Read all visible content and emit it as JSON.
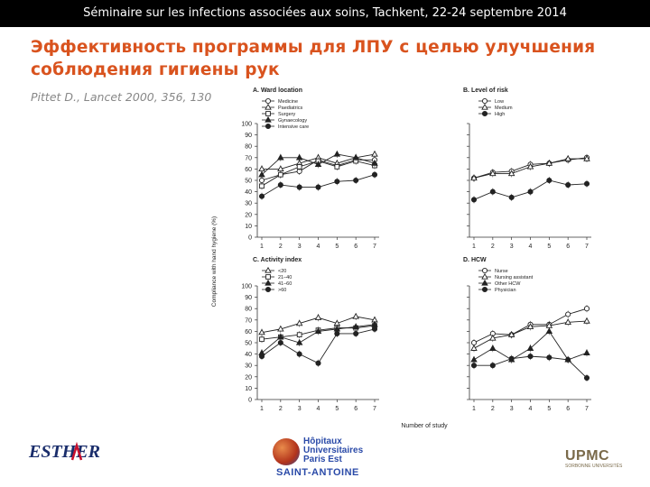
{
  "header": {
    "bar_text": "Séminaire sur les infections associées aux soins, Tachkent, 22-24 septembre 2014"
  },
  "slide": {
    "title_line1": "Эффективность программы для ЛПУ с целью улучшения",
    "title_line2": "соблюдения гигиены рук",
    "citation": "Pittet D., Lancet 2000, 356, 130"
  },
  "logos": {
    "esther": "ESTHER",
    "hopitaux": "Hôpitaux Universitaires Paris Est",
    "saint_antoine": "SAINT-ANTOINE",
    "upmc": "UPMC",
    "upmc_sub": "SORBONNE UNIVERSITÉS"
  },
  "colors": {
    "title": "#d9531e",
    "bar": "#000000",
    "series": "#222222"
  },
  "chart_data": {
    "type": "line",
    "ylabel": "Compliance with hand hygiene (%)",
    "xlabel": "Number of study",
    "x": [
      1,
      2,
      3,
      4,
      5,
      6,
      7
    ],
    "ylim": [
      0,
      100
    ],
    "yticks": [
      0,
      10,
      20,
      30,
      40,
      50,
      60,
      70,
      80,
      90,
      100
    ],
    "panels": [
      {
        "title": "A. Ward location",
        "y_tick_labels_shown": true,
        "series": [
          {
            "name": "Medicine",
            "marker": "circle-open",
            "values": [
              50,
              55,
              58,
              68,
              63,
              68,
              68
            ]
          },
          {
            "name": "Paediatrics",
            "marker": "triangle-open",
            "values": [
              60,
              60,
              65,
              70,
              65,
              70,
              73
            ]
          },
          {
            "name": "Surgery",
            "marker": "square-open",
            "values": [
              45,
              55,
              62,
              67,
              62,
              67,
              63
            ]
          },
          {
            "name": "Gynaecology",
            "marker": "triangle-filled",
            "values": [
              55,
              70,
              70,
              64,
              73,
              70,
              65
            ]
          },
          {
            "name": "Intensive care",
            "marker": "circle-filled",
            "values": [
              36,
              46,
              44,
              44,
              49,
              50,
              55
            ]
          }
        ]
      },
      {
        "title": "B. Level of risk",
        "y_tick_labels_shown": false,
        "series": [
          {
            "name": "Low",
            "marker": "circle-open",
            "values": [
              52,
              57,
              58,
              64,
              65,
              68,
              70
            ]
          },
          {
            "name": "Medium",
            "marker": "triangle-open",
            "values": [
              52,
              56,
              56,
              62,
              65,
              69,
              69
            ]
          },
          {
            "name": "High",
            "marker": "circle-filled",
            "values": [
              33,
              40,
              35,
              40,
              50,
              46,
              47
            ]
          }
        ]
      },
      {
        "title": "C. Activity index",
        "y_tick_labels_shown": true,
        "series": [
          {
            "name": "<20",
            "marker": "triangle-open",
            "values": [
              59,
              62,
              67,
              72,
              67,
              73,
              70
            ]
          },
          {
            "name": "21–40",
            "marker": "square-open",
            "values": [
              53,
              55,
              57,
              61,
              63,
              63,
              65
            ]
          },
          {
            "name": "41–60",
            "marker": "triangle-filled",
            "values": [
              41,
              55,
              50,
              60,
              62,
              64,
              66
            ]
          },
          {
            "name": ">60",
            "marker": "circle-filled",
            "values": [
              38,
              50,
              40,
              32,
              58,
              58,
              62
            ]
          }
        ]
      },
      {
        "title": "D. HCW",
        "y_tick_labels_shown": false,
        "series": [
          {
            "name": "Nurse",
            "marker": "circle-open",
            "values": [
              50,
              58,
              57,
              66,
              66,
              75,
              80
            ]
          },
          {
            "name": "Nursing assistant",
            "marker": "triangle-open",
            "values": [
              45,
              54,
              57,
              64,
              65,
              68,
              69
            ]
          },
          {
            "name": "Other HCW",
            "marker": "triangle-filled",
            "values": [
              35,
              45,
              35,
              45,
              60,
              35,
              41
            ]
          },
          {
            "name": "Physician",
            "marker": "circle-filled",
            "values": [
              30,
              30,
              36,
              38,
              37,
              35,
              19
            ]
          }
        ]
      }
    ]
  }
}
